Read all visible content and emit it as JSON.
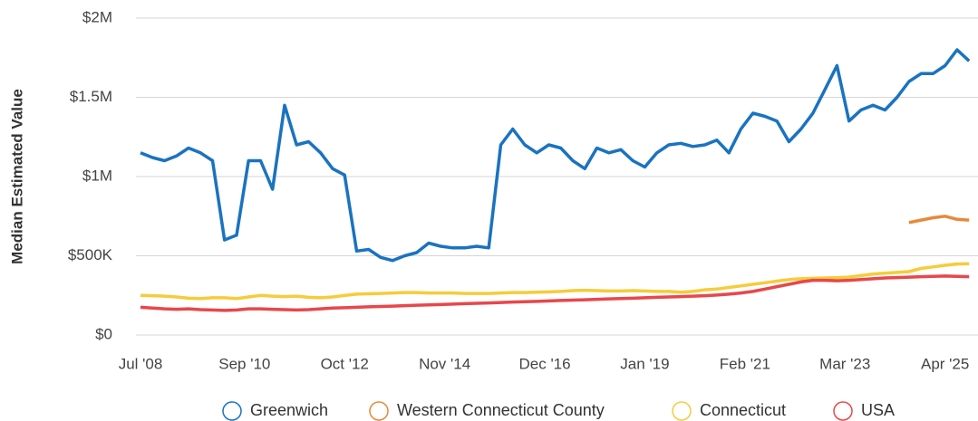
{
  "chart_data": {
    "type": "line",
    "y_label": "Median Estimated Value",
    "x": [
      "2008-07",
      "2008-10",
      "2009-01",
      "2009-04",
      "2009-07",
      "2009-10",
      "2010-01",
      "2010-04",
      "2010-07",
      "2010-10",
      "2011-01",
      "2011-04",
      "2011-07",
      "2011-10",
      "2012-01",
      "2012-04",
      "2012-07",
      "2012-10",
      "2013-01",
      "2013-04",
      "2013-07",
      "2013-10",
      "2014-01",
      "2014-04",
      "2014-07",
      "2014-10",
      "2015-01",
      "2015-04",
      "2015-07",
      "2015-10",
      "2016-01",
      "2016-04",
      "2016-07",
      "2016-10",
      "2017-01",
      "2017-04",
      "2017-07",
      "2017-10",
      "2018-01",
      "2018-04",
      "2018-07",
      "2018-10",
      "2019-01",
      "2019-04",
      "2019-07",
      "2019-10",
      "2020-01",
      "2020-04",
      "2020-07",
      "2020-10",
      "2021-01",
      "2021-04",
      "2021-07",
      "2021-10",
      "2022-01",
      "2022-04",
      "2022-07",
      "2022-10",
      "2023-01",
      "2023-04",
      "2023-07",
      "2023-10",
      "2024-01",
      "2024-04",
      "2024-07",
      "2024-10",
      "2025-01",
      "2025-04",
      "2025-07",
      "2025-10"
    ],
    "xlim": [
      "2008-07",
      "2025-12"
    ],
    "xticks": [
      {
        "value": "2008-07",
        "label": "Jul '08"
      },
      {
        "value": "2010-09",
        "label": "Sep '10"
      },
      {
        "value": "2012-10",
        "label": "Oct '12"
      },
      {
        "value": "2014-11",
        "label": "Nov '14"
      },
      {
        "value": "2016-12",
        "label": "Dec '16"
      },
      {
        "value": "2019-01",
        "label": "Jan '19"
      },
      {
        "value": "2021-02",
        "label": "Feb '21"
      },
      {
        "value": "2023-03",
        "label": "Mar '23"
      },
      {
        "value": "2025-04",
        "label": "Apr '25"
      }
    ],
    "ylim": [
      0,
      2000000
    ],
    "yticks": [
      {
        "value": 0,
        "label": "$0"
      },
      {
        "value": 500000,
        "label": "$500K"
      },
      {
        "value": 1000000,
        "label": "$1M"
      },
      {
        "value": 1500000,
        "label": "$1.5M"
      },
      {
        "value": 2000000,
        "label": "$2M"
      }
    ],
    "grid": true,
    "legend": "bottom",
    "series": [
      {
        "name": "Greenwich",
        "color": "#1a73c0",
        "values": [
          1150000,
          1120000,
          1100000,
          1130000,
          1180000,
          1150000,
          1100000,
          600000,
          630000,
          1100000,
          1100000,
          920000,
          1450000,
          1200000,
          1220000,
          1150000,
          1050000,
          1010000,
          530000,
          540000,
          490000,
          470000,
          500000,
          520000,
          580000,
          560000,
          550000,
          550000,
          560000,
          550000,
          1200000,
          1300000,
          1200000,
          1150000,
          1200000,
          1180000,
          1100000,
          1050000,
          1180000,
          1150000,
          1170000,
          1100000,
          1060000,
          1150000,
          1200000,
          1210000,
          1190000,
          1200000,
          1230000,
          1150000,
          1300000,
          1400000,
          1380000,
          1350000,
          1220000,
          1300000,
          1400000,
          1550000,
          1700000,
          1350000,
          1420000,
          1450000,
          1420000,
          1500000,
          1600000,
          1650000,
          1650000,
          1700000,
          1800000,
          1730000
        ]
      },
      {
        "name": "Western Connecticut County",
        "color": "#e8883a",
        "values": [
          null,
          null,
          null,
          null,
          null,
          null,
          null,
          null,
          null,
          null,
          null,
          null,
          null,
          null,
          null,
          null,
          null,
          null,
          null,
          null,
          null,
          null,
          null,
          null,
          null,
          null,
          null,
          null,
          null,
          null,
          null,
          null,
          null,
          null,
          null,
          null,
          null,
          null,
          null,
          null,
          null,
          null,
          null,
          null,
          null,
          null,
          null,
          null,
          null,
          null,
          null,
          null,
          null,
          null,
          null,
          null,
          null,
          null,
          null,
          null,
          null,
          null,
          null,
          null,
          710000,
          725000,
          740000,
          750000,
          730000,
          725000
        ]
      },
      {
        "name": "Connecticut",
        "color": "#f5cc3a",
        "values": [
          250000,
          248000,
          245000,
          240000,
          232000,
          230000,
          235000,
          235000,
          230000,
          240000,
          250000,
          245000,
          242000,
          245000,
          238000,
          235000,
          240000,
          250000,
          258000,
          260000,
          262000,
          265000,
          268000,
          268000,
          265000,
          265000,
          265000,
          262000,
          262000,
          262000,
          265000,
          268000,
          268000,
          270000,
          272000,
          275000,
          280000,
          282000,
          280000,
          278000,
          278000,
          280000,
          278000,
          275000,
          275000,
          270000,
          275000,
          285000,
          290000,
          300000,
          310000,
          320000,
          330000,
          340000,
          350000,
          355000,
          358000,
          360000,
          362000,
          365000,
          375000,
          385000,
          390000,
          395000,
          400000,
          420000,
          430000,
          440000,
          448000,
          450000
        ]
      },
      {
        "name": "USA",
        "color": "#e8474b",
        "values": [
          175000,
          170000,
          165000,
          162000,
          165000,
          160000,
          158000,
          155000,
          158000,
          165000,
          165000,
          162000,
          160000,
          158000,
          160000,
          165000,
          170000,
          172000,
          175000,
          178000,
          180000,
          182000,
          185000,
          188000,
          190000,
          192000,
          195000,
          198000,
          200000,
          202000,
          205000,
          208000,
          210000,
          212000,
          215000,
          218000,
          220000,
          222000,
          225000,
          228000,
          230000,
          232000,
          235000,
          238000,
          240000,
          242000,
          245000,
          248000,
          252000,
          258000,
          265000,
          275000,
          290000,
          305000,
          320000,
          335000,
          345000,
          345000,
          342000,
          345000,
          350000,
          355000,
          360000,
          362000,
          365000,
          368000,
          370000,
          372000,
          370000,
          368000
        ]
      }
    ]
  }
}
